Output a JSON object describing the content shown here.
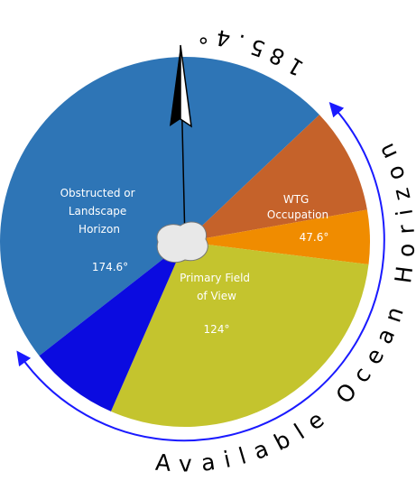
{
  "segments": [
    {
      "lines": [
        "Obstructed or",
        "Landscape",
        "Horizon"
      ],
      "value": "174.6°"
    },
    {
      "lines": [
        "WTG",
        "Occupation"
      ]
    },
    {
      "value": "47.6°"
    },
    {
      "lines": [
        "Primary Field",
        "of View"
      ],
      "value": "124°"
    }
  ],
  "arc_label": "Available Ocean Horizon",
  "arc_value": "185.4°"
}
